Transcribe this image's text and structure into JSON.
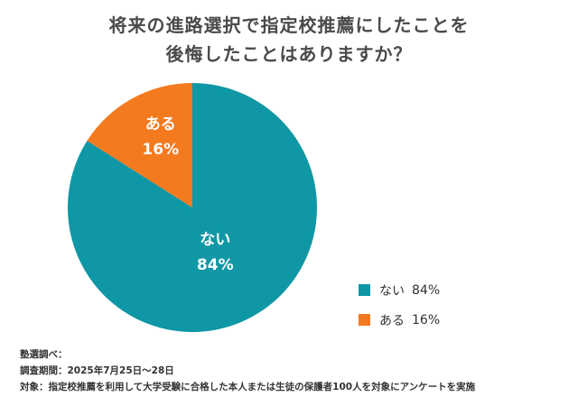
{
  "title": {
    "line1": "将来の進路選択で指定校推薦にしたことを",
    "line2": "後悔したことはありますか？"
  },
  "chart_data": {
    "type": "pie",
    "title": "将来の進路選択で指定校推薦にしたことを後悔したことはありますか？",
    "slices": [
      {
        "name": "ない",
        "value": 84,
        "label": "84%",
        "color": "#0f97a5"
      },
      {
        "name": "ある",
        "value": 16,
        "label": "16%",
        "color": "#f47a1f"
      }
    ],
    "legend_position": "bottom-right"
  },
  "legend": [
    {
      "name": "ない",
      "value_label": "84%",
      "color": "#0f97a5"
    },
    {
      "name": "ある",
      "value_label": "16%",
      "color": "#f47a1f"
    }
  ],
  "footnote": {
    "source": "塾選調べ：",
    "period": "調査期間：2025年7月25日〜28日",
    "target": "対象：指定校推薦を利用して大学受験に合格した本人または生徒の保護者100人を対象にアンケートを実施"
  }
}
